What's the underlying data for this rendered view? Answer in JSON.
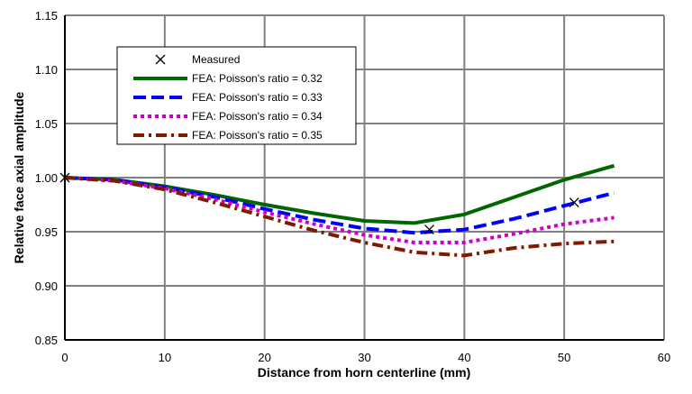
{
  "chart_data": {
    "type": "line",
    "xlabel": "Distance from horn centerline (mm)",
    "ylabel": "Relative face axial amplitude",
    "xlim": [
      0,
      60
    ],
    "ylim": [
      0.85,
      1.15
    ],
    "xticks": [
      "0",
      "10",
      "20",
      "30",
      "40",
      "50",
      "60"
    ],
    "yticks": [
      "0.85",
      "0.90",
      "0.95",
      "1.00",
      "1.05",
      "1.10",
      "1.15"
    ],
    "grid": true,
    "legend_position": "top-left",
    "series": [
      {
        "name": "Measured",
        "style": "marker-x",
        "color": "#000000",
        "x": [
          0,
          36.5,
          51
        ],
        "y": [
          1.0,
          0.952,
          0.977
        ]
      },
      {
        "name": "FEA: Poisson's ratio = 0.32",
        "style": "solid",
        "color": "#006600",
        "x": [
          0,
          5,
          10,
          15,
          20,
          25,
          30,
          35,
          40,
          45,
          50,
          55
        ],
        "y": [
          1.0,
          0.998,
          0.992,
          0.984,
          0.975,
          0.967,
          0.96,
          0.958,
          0.966,
          0.982,
          0.998,
          1.011
        ]
      },
      {
        "name": "FEA: Poisson's ratio = 0.33",
        "style": "dashed",
        "color": "#0000ff",
        "x": [
          0,
          5,
          10,
          15,
          20,
          25,
          30,
          35,
          40,
          45,
          50,
          55
        ],
        "y": [
          1.0,
          0.998,
          0.991,
          0.982,
          0.971,
          0.961,
          0.953,
          0.949,
          0.952,
          0.962,
          0.974,
          0.986
        ]
      },
      {
        "name": "FEA: Poisson's ratio = 0.34",
        "style": "dotted",
        "color": "#cc00cc",
        "x": [
          0,
          5,
          10,
          15,
          20,
          25,
          30,
          35,
          40,
          45,
          50,
          55
        ],
        "y": [
          1.0,
          0.997,
          0.99,
          0.98,
          0.968,
          0.957,
          0.947,
          0.94,
          0.94,
          0.948,
          0.957,
          0.963
        ]
      },
      {
        "name": "FEA: Poisson's ratio = 0.35",
        "style": "dash-dot",
        "color": "#7f1a00",
        "x": [
          0,
          5,
          10,
          15,
          20,
          25,
          30,
          35,
          40,
          45,
          50,
          55
        ],
        "y": [
          1.0,
          0.997,
          0.989,
          0.977,
          0.964,
          0.951,
          0.94,
          0.931,
          0.928,
          0.935,
          0.939,
          0.941
        ]
      }
    ]
  }
}
